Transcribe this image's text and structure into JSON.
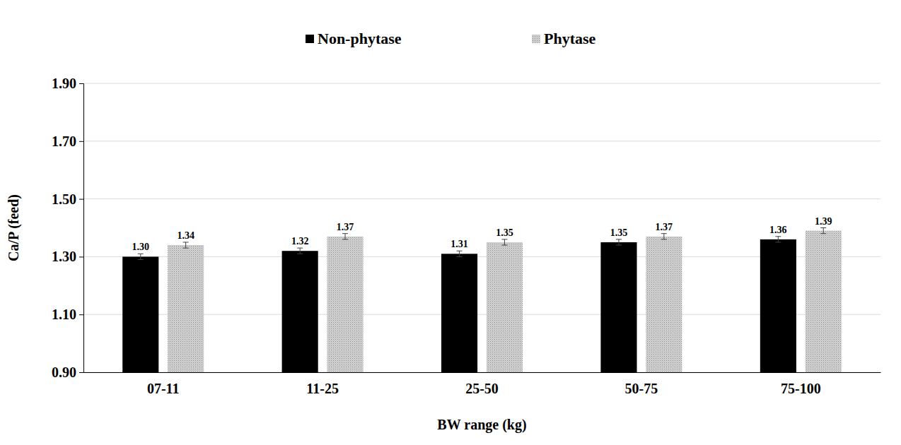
{
  "chart_data": {
    "type": "bar",
    "x_label": "BW range (kg)",
    "y_label": "Ca/P (feed)",
    "categories": [
      "07-11",
      "11-25",
      "25-50",
      "50-75",
      "75-100"
    ],
    "series": [
      {
        "name": "Non-phytase",
        "color": "#000000",
        "values": [
          1.3,
          1.32,
          1.31,
          1.35,
          1.36
        ],
        "value_labels": [
          "1.30",
          "1.32",
          "1.31",
          "1.35",
          "1.36"
        ],
        "errors": [
          0.01,
          0.01,
          0.01,
          0.01,
          0.01
        ]
      },
      {
        "name": "Phytase",
        "color": "#d4d4d4",
        "values": [
          1.34,
          1.37,
          1.35,
          1.37,
          1.39
        ],
        "value_labels": [
          "1.34",
          "1.37",
          "1.35",
          "1.37",
          "1.39"
        ],
        "errors": [
          0.01,
          0.01,
          0.01,
          0.01,
          0.01
        ]
      }
    ],
    "ylim": [
      0.9,
      1.9
    ],
    "yticks": [
      {
        "value": 0.9,
        "label": "0.90"
      },
      {
        "value": 1.1,
        "label": "1.10"
      },
      {
        "value": 1.3,
        "label": "1.30"
      },
      {
        "value": 1.5,
        "label": "1.50"
      },
      {
        "value": 1.7,
        "label": "1.70"
      },
      {
        "value": 1.9,
        "label": "1.90"
      }
    ],
    "grid": true,
    "legend": "top",
    "data_labels": true
  }
}
